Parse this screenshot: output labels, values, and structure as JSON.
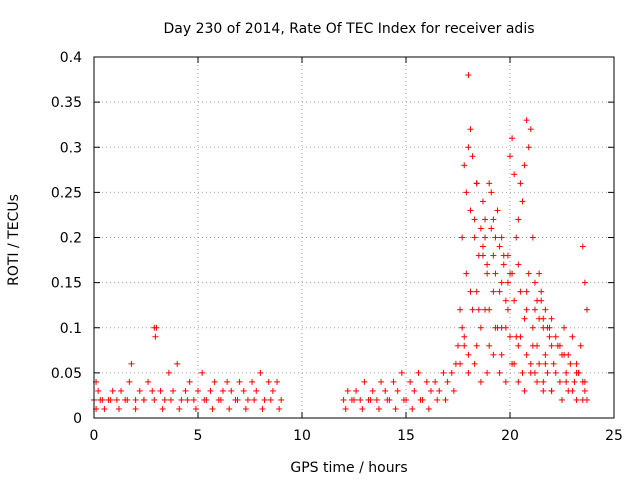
{
  "chart_data": {
    "type": "scatter",
    "title": "Day 230 of 2014, Rate Of TEC Index for receiver adis",
    "xlabel": "GPS time / hours",
    "ylabel": "ROTI / TECUs",
    "xlim": [
      0,
      25
    ],
    "ylim": [
      0,
      0.4
    ],
    "xticks": [
      0,
      5,
      10,
      15,
      20,
      25
    ],
    "xtick_labels": [
      "0",
      "5",
      "10",
      "15",
      "20",
      "25"
    ],
    "yticks": [
      0,
      0.05,
      0.1,
      0.15,
      0.2,
      0.25,
      0.3,
      0.35,
      0.4
    ],
    "ytick_labels": [
      "0",
      "0.05",
      "0.1",
      "0.15",
      "0.2",
      "0.25",
      "0.3",
      "0.35",
      "0.4"
    ],
    "grid": true,
    "marker": "+",
    "color": "#ff0000",
    "series": [
      {
        "name": "ROTI",
        "x": [
          0.0,
          0.1,
          0.2,
          0.3,
          0.5,
          0.7,
          0.9,
          1.1,
          1.3,
          1.5,
          1.7,
          1.8,
          2.0,
          2.2,
          2.4,
          2.6,
          2.8,
          2.9,
          2.95,
          3.0,
          3.2,
          3.4,
          3.6,
          3.8,
          4.0,
          4.2,
          4.4,
          4.6,
          4.8,
          5.0,
          5.2,
          5.4,
          5.6,
          5.8,
          6.0,
          6.2,
          6.4,
          6.6,
          6.8,
          7.0,
          7.2,
          7.4,
          7.6,
          7.8,
          8.0,
          8.2,
          8.4,
          8.6,
          8.8,
          9.0,
          12.0,
          12.2,
          12.4,
          12.6,
          12.8,
          13.0,
          13.2,
          13.4,
          13.6,
          13.8,
          14.0,
          14.2,
          14.4,
          14.6,
          14.8,
          15.0,
          15.2,
          15.4,
          15.6,
          15.8,
          16.0,
          16.2,
          16.4,
          16.6,
          16.8,
          17.0,
          17.2,
          17.4,
          17.5,
          17.6,
          17.7,
          17.8,
          17.9,
          18.0,
          18.1,
          18.2,
          18.3,
          18.4,
          18.5,
          18.6,
          18.7,
          18.8,
          18.9,
          19.0,
          19.1,
          19.2,
          19.3,
          19.4,
          19.5,
          19.6,
          19.7,
          19.8,
          19.9,
          20.0,
          20.1,
          20.2,
          20.3,
          20.4,
          20.5,
          20.6,
          20.7,
          20.8,
          20.9,
          21.0,
          21.1,
          21.2,
          21.3,
          21.4,
          21.5,
          21.6,
          21.7,
          21.8,
          21.9,
          22.0,
          22.2,
          22.4,
          22.6,
          22.8,
          23.0,
          23.2,
          23.4,
          23.5,
          23.6,
          23.7,
          0.1,
          0.4,
          0.8,
          1.2,
          1.6,
          2.0,
          2.4,
          2.9,
          3.3,
          3.7,
          4.1,
          4.5,
          4.9,
          5.3,
          5.7,
          6.1,
          6.5,
          6.9,
          7.3,
          7.7,
          8.1,
          8.5,
          8.9,
          12.1,
          12.5,
          12.9,
          13.3,
          13.7,
          14.1,
          14.5,
          14.9,
          15.3,
          15.7,
          16.1,
          16.5,
          16.9,
          17.3,
          17.7,
          17.9,
          18.1,
          18.3,
          18.5,
          18.7,
          18.9,
          19.1,
          19.3,
          19.5,
          19.7,
          19.9,
          20.1,
          20.3,
          20.5,
          20.7,
          20.9,
          21.1,
          21.3,
          21.5,
          21.7,
          21.9,
          22.1,
          22.3,
          22.5,
          22.7,
          22.9,
          23.1,
          23.3,
          23.5,
          17.6,
          17.8,
          18.0,
          18.2,
          18.4,
          18.6,
          18.8,
          19.0,
          19.2,
          19.4,
          19.6,
          19.8,
          20.0,
          20.2,
          20.4,
          20.6,
          20.8,
          21.0,
          21.2,
          21.4,
          21.6,
          21.8,
          22.0,
          22.4,
          22.8,
          23.2,
          23.6,
          18.0,
          18.3,
          18.6,
          18.9,
          19.2,
          19.5,
          19.8,
          20.1,
          20.4,
          20.7,
          21.0,
          21.3,
          21.6,
          22.0,
          22.5,
          23.0,
          23.5,
          17.8,
          18.1,
          18.4,
          18.7,
          19.0,
          19.3,
          19.6,
          19.9,
          20.2,
          20.5,
          20.8,
          21.1,
          21.4,
          21.7,
          22.2,
          22.7,
          23.3,
          23.7,
          18.0,
          18.4,
          18.8,
          19.2,
          19.6,
          20.0,
          20.4,
          20.8,
          21.2,
          21.6,
          22.0,
          22.6,
          23.2,
          23.6
        ],
        "y": [
          0.02,
          0.04,
          0.03,
          0.02,
          0.01,
          0.02,
          0.03,
          0.02,
          0.03,
          0.02,
          0.04,
          0.06,
          0.02,
          0.03,
          0.02,
          0.04,
          0.03,
          0.1,
          0.09,
          0.1,
          0.03,
          0.02,
          0.05,
          0.03,
          0.06,
          0.02,
          0.03,
          0.04,
          0.02,
          0.03,
          0.05,
          0.02,
          0.03,
          0.04,
          0.02,
          0.03,
          0.04,
          0.03,
          0.02,
          0.04,
          0.03,
          0.02,
          0.04,
          0.03,
          0.05,
          0.02,
          0.04,
          0.03,
          0.04,
          0.02,
          0.02,
          0.03,
          0.02,
          0.03,
          0.02,
          0.04,
          0.02,
          0.03,
          0.02,
          0.04,
          0.03,
          0.02,
          0.04,
          0.03,
          0.05,
          0.02,
          0.04,
          0.03,
          0.05,
          0.02,
          0.04,
          0.03,
          0.04,
          0.03,
          0.05,
          0.04,
          0.05,
          0.06,
          0.08,
          0.12,
          0.2,
          0.28,
          0.25,
          0.3,
          0.32,
          0.29,
          0.22,
          0.26,
          0.18,
          0.21,
          0.24,
          0.2,
          0.17,
          0.26,
          0.25,
          0.22,
          0.2,
          0.23,
          0.19,
          0.15,
          0.17,
          0.13,
          0.15,
          0.29,
          0.31,
          0.27,
          0.2,
          0.22,
          0.26,
          0.24,
          0.28,
          0.33,
          0.3,
          0.32,
          0.2,
          0.15,
          0.13,
          0.16,
          0.14,
          0.11,
          0.12,
          0.1,
          0.09,
          0.11,
          0.09,
          0.08,
          0.1,
          0.07,
          0.09,
          0.06,
          0.08,
          0.19,
          0.15,
          0.12,
          0.01,
          0.02,
          0.02,
          0.01,
          0.02,
          0.01,
          0.02,
          0.02,
          0.01,
          0.02,
          0.01,
          0.02,
          0.01,
          0.02,
          0.01,
          0.02,
          0.01,
          0.02,
          0.01,
          0.02,
          0.01,
          0.02,
          0.01,
          0.01,
          0.02,
          0.01,
          0.02,
          0.01,
          0.02,
          0.01,
          0.02,
          0.01,
          0.02,
          0.01,
          0.02,
          0.02,
          0.03,
          0.1,
          0.16,
          0.14,
          0.2,
          0.12,
          0.18,
          0.16,
          0.21,
          0.1,
          0.14,
          0.18,
          0.12,
          0.16,
          0.09,
          0.14,
          0.11,
          0.16,
          0.1,
          0.08,
          0.13,
          0.07,
          0.1,
          0.06,
          0.08,
          0.07,
          0.05,
          0.06,
          0.04,
          0.05,
          0.04,
          0.06,
          0.09,
          0.07,
          0.12,
          0.08,
          0.1,
          0.12,
          0.08,
          0.14,
          0.1,
          0.07,
          0.1,
          0.09,
          0.06,
          0.08,
          0.05,
          0.07,
          0.06,
          0.05,
          0.06,
          0.04,
          0.05,
          0.03,
          0.04,
          0.03,
          0.02,
          0.03,
          0.05,
          0.06,
          0.04,
          0.05,
          0.07,
          0.05,
          0.04,
          0.06,
          0.04,
          0.03,
          0.05,
          0.04,
          0.03,
          0.03,
          0.02,
          0.03,
          0.02,
          0.08,
          0.23,
          0.14,
          0.19,
          0.12,
          0.16,
          0.1,
          0.18,
          0.13,
          0.09,
          0.12,
          0.08,
          0.11,
          0.06,
          0.05,
          0.04,
          0.05,
          0.02,
          0.38,
          0.26,
          0.22,
          0.18,
          0.2,
          0.16,
          0.17,
          0.14,
          0.12,
          0.1,
          0.08,
          0.07,
          0.05,
          0.04
        ]
      }
    ]
  }
}
